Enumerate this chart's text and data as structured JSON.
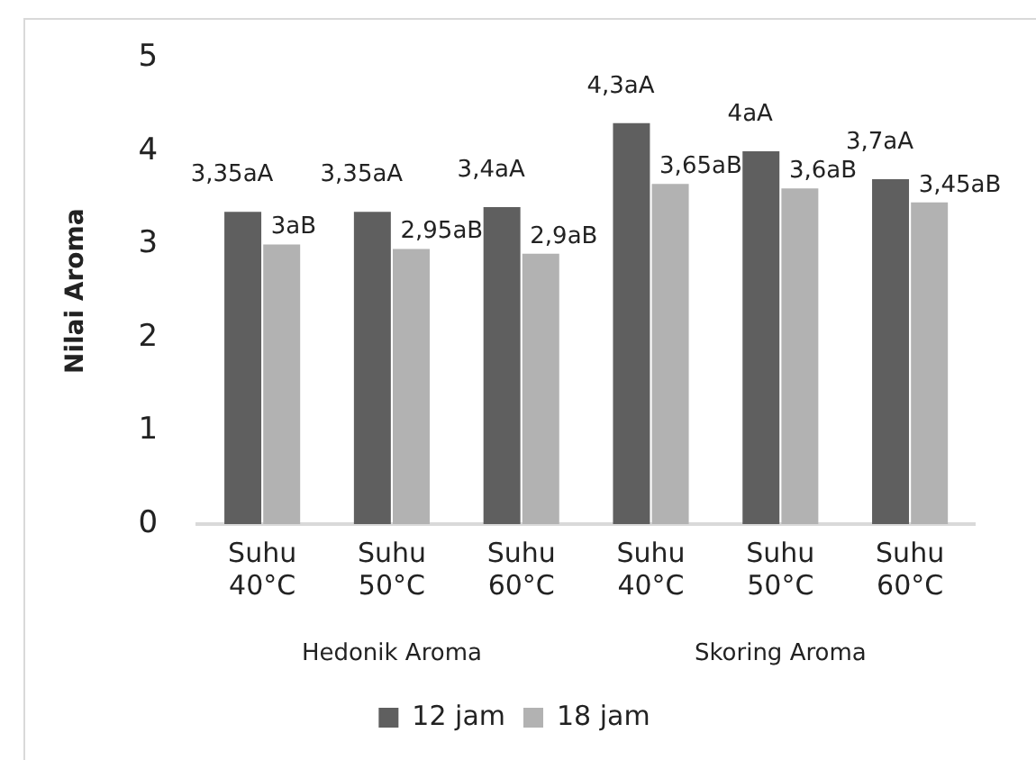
{
  "chart_data": {
    "type": "bar",
    "ylabel": "Nilai Aroma",
    "categories": [
      "Suhu 40°C",
      "Suhu 50°C",
      "Suhu 60°C",
      "Suhu 40°C",
      "Suhu 50°C",
      "Suhu 60°C"
    ],
    "series": [
      {
        "name": "12 jam",
        "color": "#5f5f5f",
        "values": [
          3.35,
          3.35,
          3.4,
          4.3,
          4,
          3.7
        ],
        "value_labels": [
          "3,35aA",
          "3,35aA",
          "3,4aA",
          "4,3aA",
          "4aA",
          "3,7aA"
        ]
      },
      {
        "name": "18 jam",
        "color": "#b2b2b2",
        "values": [
          3,
          2.95,
          2.9,
          3.65,
          3.6,
          3.45
        ],
        "value_labels": [
          "3aB",
          "2,95aB",
          "2,9aB",
          "3,65aB",
          "3,6aB",
          "3,45aB"
        ]
      }
    ],
    "annotations": [
      "Hedonik Aroma",
      "Skoring Aroma"
    ],
    "ylim": [
      0,
      5
    ],
    "yticks": [
      0,
      1,
      2,
      3,
      4,
      5
    ],
    "grid": false,
    "legend": "bottom"
  }
}
